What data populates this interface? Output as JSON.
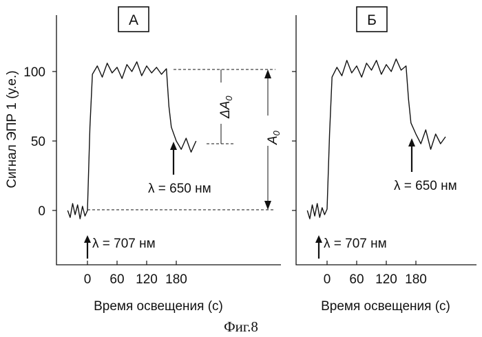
{
  "figure": {
    "caption": "Фиг.8"
  },
  "chart_data": [
    {
      "type": "line",
      "panel_label": "А",
      "ylabel": "Сигнал ЭПР 1 (у.е.)",
      "xlabel": "Время освещения (с)",
      "x_ticks": [
        0,
        60,
        120,
        180
      ],
      "y_ticks": [
        0,
        50,
        100
      ],
      "x_tick_labels": [
        "0",
        "60",
        "120",
        "180"
      ],
      "y_tick_labels": [
        "0",
        "50",
        "100"
      ],
      "xlim": [
        -45,
        260
      ],
      "ylim": [
        -40,
        135
      ],
      "grid": false,
      "series": [
        {
          "x": [
            -40,
            -35,
            -30,
            -25,
            -20,
            -15,
            -10,
            -5,
            0,
            5,
            10,
            20,
            30,
            40,
            50,
            60,
            70,
            80,
            90,
            100,
            110,
            120,
            130,
            140,
            150,
            160,
            165,
            170,
            180,
            190,
            200,
            210,
            220
          ],
          "y": [
            0,
            -5,
            5,
            -3,
            4,
            -6,
            3,
            -4,
            0,
            60,
            98,
            104,
            96,
            106,
            99,
            103,
            95,
            105,
            100,
            107,
            97,
            104,
            99,
            103,
            98,
            102,
            75,
            60,
            50,
            44,
            52,
            42,
            50
          ]
        }
      ],
      "annotations": {
        "excitation": "λ = 707 нм",
        "bleach": "λ = 650 нм",
        "delta": "ΔA",
        "delta_sub": "0",
        "total": "A",
        "total_sub": "0"
      },
      "reference_levels": {
        "A0_top": 100,
        "A0_bottom": 0,
        "dA0_bottom": 48
      }
    },
    {
      "type": "line",
      "panel_label": "Б",
      "xlabel": "Время освещения (с)",
      "x_ticks": [
        0,
        60,
        120,
        180
      ],
      "y_ticks": [
        0,
        50,
        100
      ],
      "x_tick_labels": [
        "0",
        "60",
        "120",
        "180"
      ],
      "xlim": [
        -45,
        260
      ],
      "ylim": [
        -40,
        135
      ],
      "grid": false,
      "series": [
        {
          "x": [
            -40,
            -35,
            -30,
            -25,
            -20,
            -15,
            -10,
            -5,
            0,
            5,
            10,
            20,
            30,
            40,
            50,
            60,
            70,
            80,
            90,
            100,
            110,
            120,
            130,
            140,
            150,
            160,
            165,
            170,
            180,
            190,
            200,
            210,
            220,
            230,
            240
          ],
          "y": [
            0,
            -6,
            4,
            -4,
            5,
            -5,
            2,
            -3,
            1,
            55,
            96,
            103,
            97,
            108,
            99,
            104,
            96,
            106,
            101,
            108,
            98,
            105,
            100,
            109,
            101,
            104,
            80,
            63,
            55,
            48,
            58,
            44,
            55,
            48,
            53
          ]
        }
      ],
      "annotations": {
        "excitation": "λ = 707 нм",
        "bleach": "λ = 650 нм"
      }
    }
  ]
}
